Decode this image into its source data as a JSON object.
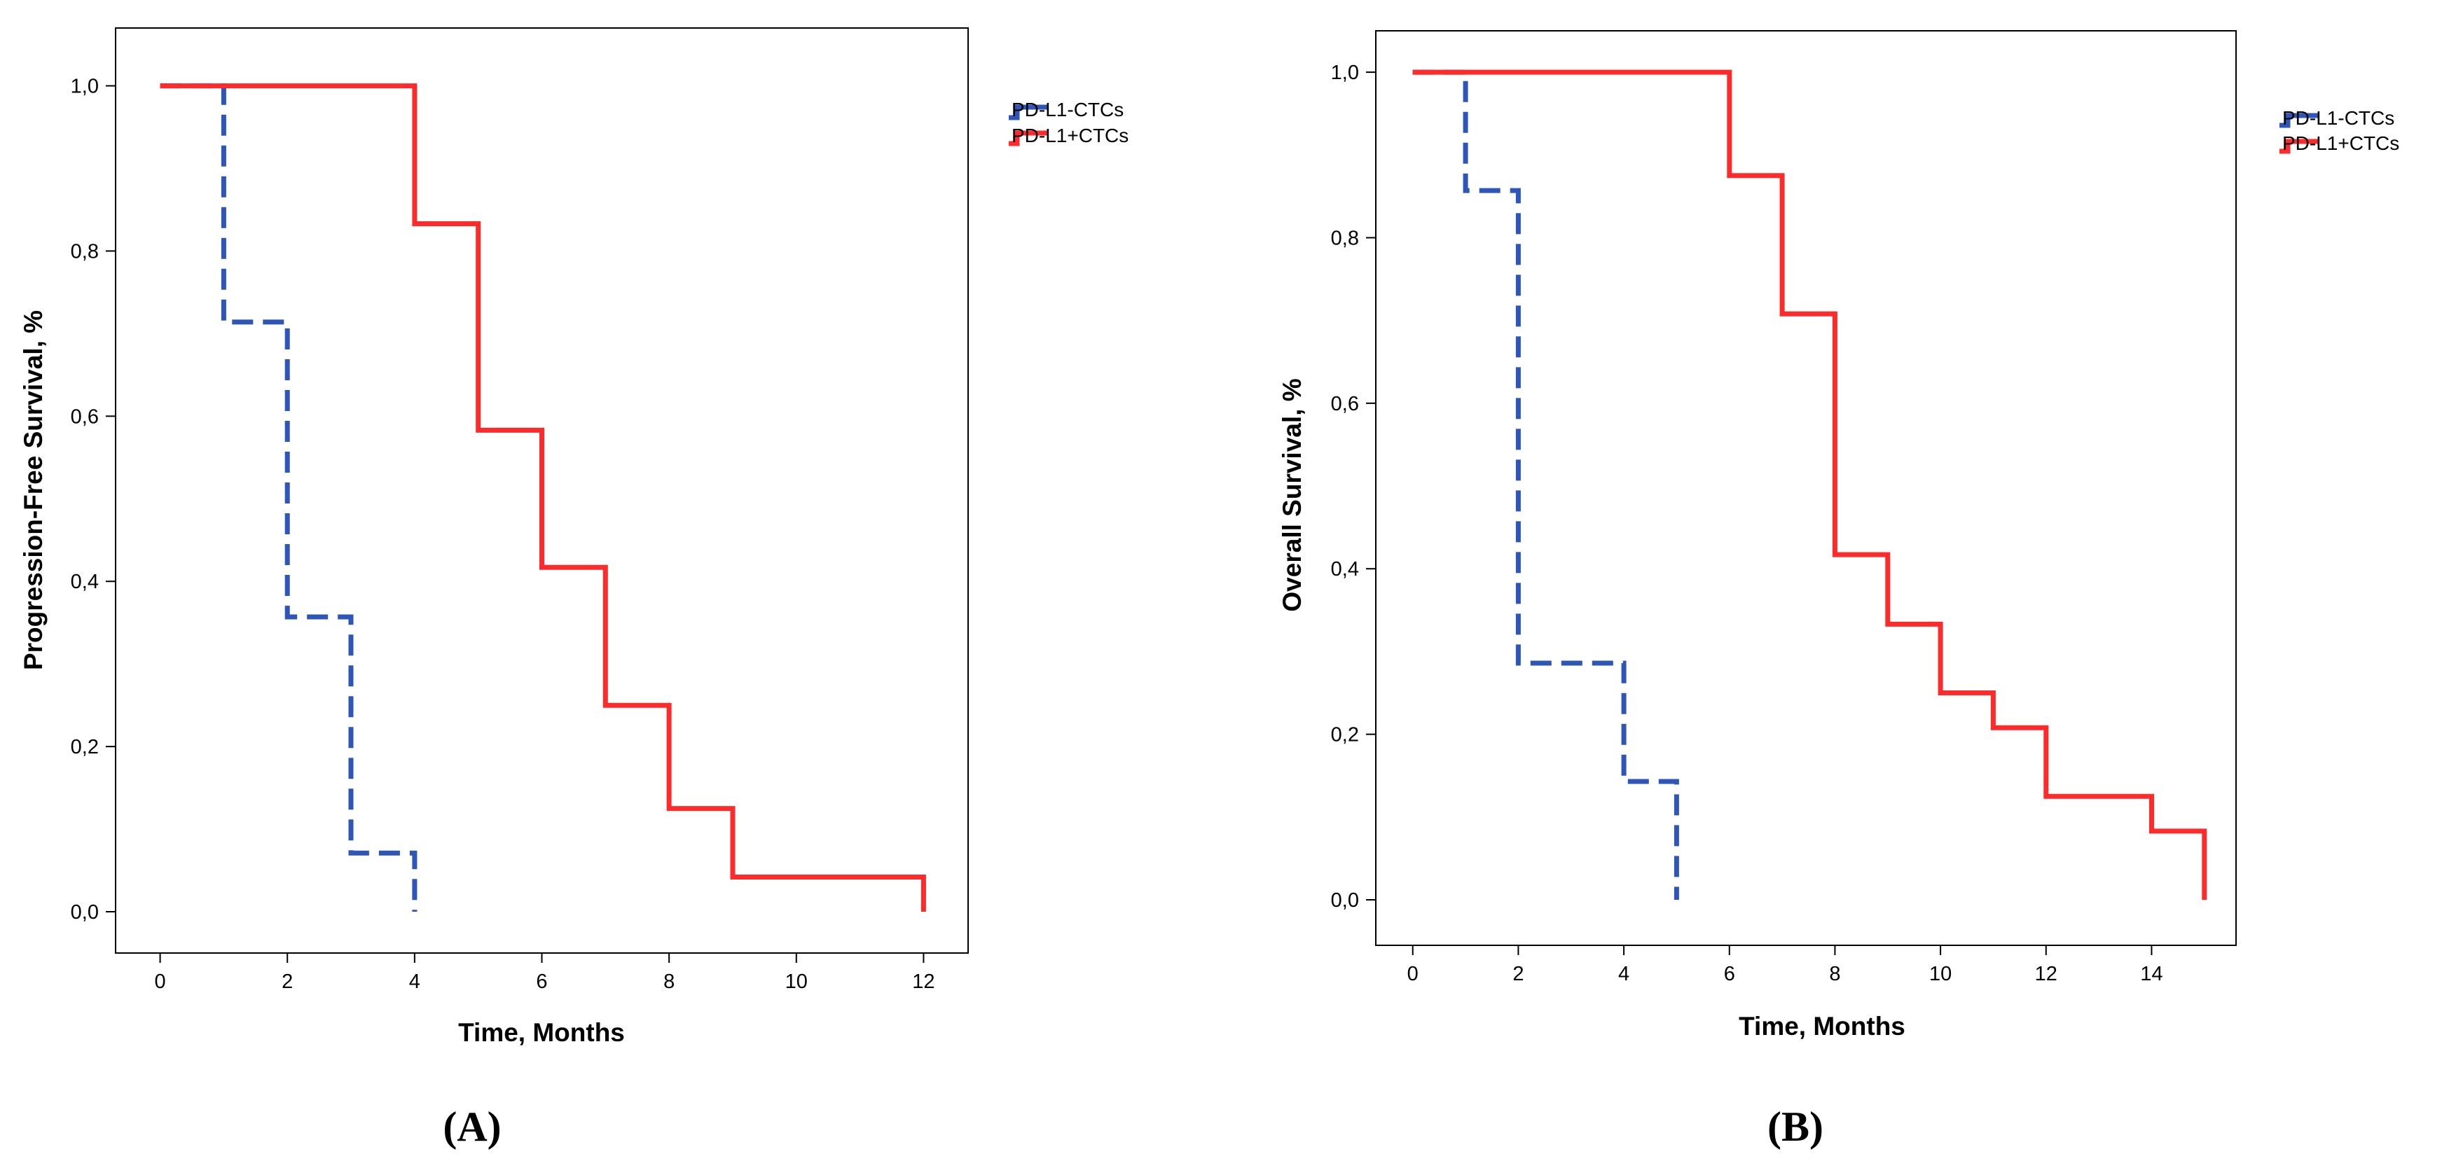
{
  "chart_data": [
    {
      "type": "line",
      "subtype": "kaplan-meier step",
      "panel_label_open": "(",
      "panel_label_letter": "A",
      "panel_label_close": ")",
      "xlabel": "Time, Months",
      "ylabel": "Progression-Free Survival, %",
      "xlim": [
        -0.7,
        12.7
      ],
      "ylim": [
        -0.05,
        1.07
      ],
      "xticks": [
        0,
        2,
        4,
        6,
        8,
        10,
        12
      ],
      "xtick_labels": [
        "0",
        "2",
        "4",
        "6",
        "8",
        "10",
        "12"
      ],
      "yticks": [
        0,
        0.2,
        0.4,
        0.6,
        0.8,
        1.0
      ],
      "ytick_labels": [
        "0,0",
        "0,2",
        "0,4",
        "0,6",
        "0,8",
        "1,0"
      ],
      "legend_position": "right-top outside",
      "series": [
        {
          "name": "PD-L1-CTCs",
          "color": "#2e55b8",
          "style": "dashed",
          "x": [
            0,
            1,
            1,
            2,
            2,
            3,
            3,
            4,
            4
          ],
          "y": [
            1.0,
            1.0,
            0.714,
            0.714,
            0.357,
            0.357,
            0.071,
            0.071,
            0.0
          ]
        },
        {
          "name": "PD-L1+CTCs",
          "color": "#ff2a2a",
          "style": "solid",
          "x": [
            0,
            4,
            4,
            5,
            5,
            6,
            6,
            7,
            7,
            8,
            8,
            9,
            9,
            12,
            12
          ],
          "y": [
            1.0,
            1.0,
            0.833,
            0.833,
            0.583,
            0.583,
            0.417,
            0.417,
            0.25,
            0.25,
            0.125,
            0.125,
            0.042,
            0.042,
            0.0
          ]
        }
      ]
    },
    {
      "type": "line",
      "subtype": "kaplan-meier step",
      "panel_label_open": "(",
      "panel_label_letter": "B",
      "panel_label_close": ")",
      "xlabel": "Time, Months",
      "ylabel": "Overall Survival, %",
      "xlim": [
        -0.7,
        15.6
      ],
      "ylim": [
        -0.055,
        1.05
      ],
      "xticks": [
        0,
        2,
        4,
        6,
        8,
        10,
        12,
        14
      ],
      "xtick_labels": [
        "0",
        "2",
        "4",
        "6",
        "8",
        "10",
        "12",
        "14"
      ],
      "yticks": [
        0,
        0.2,
        0.4,
        0.6,
        0.8,
        1.0
      ],
      "ytick_labels": [
        "0,0",
        "0,2",
        "0,4",
        "0,6",
        "0,8",
        "1,0"
      ],
      "legend_position": "right-top outside",
      "series": [
        {
          "name": "PD-L1-CTCs",
          "color": "#2e55b8",
          "style": "dashed",
          "x": [
            0,
            1,
            1,
            2,
            2,
            4,
            4,
            5,
            5
          ],
          "y": [
            1.0,
            1.0,
            0.857,
            0.857,
            0.286,
            0.286,
            0.143,
            0.143,
            0.0
          ]
        },
        {
          "name": "PD-L1+CTCs",
          "color": "#ff2a2a",
          "style": "solid",
          "x": [
            0,
            6,
            6,
            7,
            7,
            8,
            8,
            9,
            9,
            10,
            10,
            11,
            11,
            12,
            12,
            14,
            14,
            15,
            15
          ],
          "y": [
            1.0,
            1.0,
            0.875,
            0.875,
            0.708,
            0.708,
            0.417,
            0.417,
            0.333,
            0.333,
            0.25,
            0.25,
            0.208,
            0.208,
            0.125,
            0.125,
            0.083,
            0.083,
            0.0
          ]
        }
      ]
    }
  ]
}
